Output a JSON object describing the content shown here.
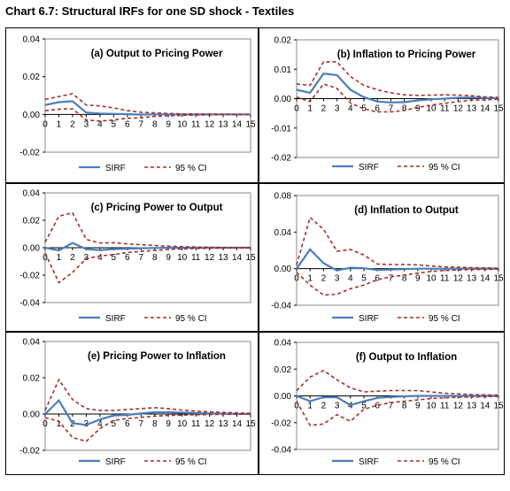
{
  "page_title": "Chart 6.7: Structural IRFs for one SD shock - Textiles",
  "colors": {
    "sirf": "#4a7ebb",
    "ci": "#a0302e"
  },
  "legend": {
    "sirf": "SIRF",
    "ci": "95 % CI"
  },
  "chart_data": [
    {
      "type": "line",
      "title": "(a) Output to Pricing Power",
      "x": [
        0,
        1,
        2,
        3,
        4,
        5,
        6,
        7,
        8,
        9,
        10,
        11,
        12,
        13,
        14,
        15
      ],
      "ylim": [
        -0.02,
        0.04
      ],
      "yticks": [
        "0.04",
        "0.02",
        "0.00",
        "-0.02"
      ],
      "ytick_values": [
        0.04,
        0.02,
        0.0,
        -0.02
      ],
      "series": [
        {
          "name": "SIRF",
          "values": [
            0.005,
            0.0065,
            0.007,
            0.001,
            0.0005,
            0.0003,
            0.0001,
            -0.0001,
            0.0,
            0.0,
            0.0,
            0.0,
            0.0,
            0.0,
            0.0,
            0.0
          ]
        },
        {
          "name": "95 % CI",
          "values": [
            0.008,
            0.0095,
            0.011,
            0.005,
            0.0045,
            0.0035,
            0.002,
            0.0012,
            0.0008,
            0.0005,
            0.0003,
            0.0002,
            0.0001,
            0.0001,
            0.0,
            0.0
          ]
        },
        {
          "name": "95 % CI",
          "values": [
            0.002,
            0.0028,
            0.003,
            -0.003,
            -0.0035,
            -0.003,
            -0.002,
            -0.0018,
            -0.001,
            -0.0008,
            -0.0005,
            -0.0003,
            -0.0002,
            -0.0001,
            -0.0001,
            -0.0001
          ]
        }
      ]
    },
    {
      "type": "line",
      "title": "(b) Inflation to Pricing Power",
      "x": [
        0,
        1,
        2,
        3,
        4,
        5,
        6,
        7,
        8,
        9,
        10,
        11,
        12,
        13,
        14,
        15
      ],
      "ylim": [
        -0.02,
        0.02
      ],
      "yticks": [
        "0.02",
        "0.01",
        "0.00",
        "-0.01",
        "-0.02"
      ],
      "ytick_values": [
        0.02,
        0.01,
        0.0,
        -0.01,
        -0.02
      ],
      "series": [
        {
          "name": "SIRF",
          "values": [
            0.003,
            0.002,
            0.0085,
            0.008,
            0.003,
            0.0005,
            -0.001,
            -0.0013,
            -0.0012,
            -0.0006,
            -0.0002,
            0.0,
            0.0003,
            0.0004,
            0.0002,
            0.0001
          ]
        },
        {
          "name": "95 % CI",
          "values": [
            0.005,
            0.0045,
            0.0125,
            0.0125,
            0.0075,
            0.0045,
            0.003,
            0.002,
            0.0013,
            0.0011,
            0.0012,
            0.0013,
            0.0012,
            0.001,
            0.0006,
            0.0004
          ]
        },
        {
          "name": "95 % CI",
          "values": [
            0.0005,
            -0.001,
            0.005,
            0.0035,
            -0.0015,
            -0.0035,
            -0.0045,
            -0.0045,
            -0.004,
            -0.003,
            -0.0022,
            -0.0016,
            -0.001,
            -0.0005,
            -0.0004,
            -0.0002
          ]
        }
      ]
    },
    {
      "type": "line",
      "title": "(c) Pricing Power to Output",
      "x": [
        0,
        1,
        2,
        3,
        4,
        5,
        6,
        7,
        8,
        9,
        10,
        11,
        12,
        13,
        14,
        15
      ],
      "ylim": [
        -0.04,
        0.04
      ],
      "yticks": [
        "0.04",
        "0.02",
        "0.00",
        "-0.02",
        "-0.04"
      ],
      "ytick_values": [
        0.04,
        0.02,
        0.0,
        -0.02,
        -0.04
      ],
      "series": [
        {
          "name": "SIRF",
          "values": [
            0.0,
            -0.002,
            0.0035,
            -0.001,
            -0.0018,
            -0.001,
            -0.0007,
            -0.0004,
            -0.0002,
            0.0,
            0.0,
            0.0,
            0.0,
            0.0,
            0.0,
            0.0
          ]
        },
        {
          "name": "95 % CI",
          "values": [
            0.004,
            0.023,
            0.0255,
            0.006,
            0.0035,
            0.0036,
            0.0028,
            0.0022,
            0.0016,
            0.0011,
            0.0008,
            0.0005,
            0.0003,
            0.0002,
            0.0001,
            0.0001
          ]
        },
        {
          "name": "95 % CI",
          "values": [
            -0.004,
            -0.0255,
            -0.018,
            -0.008,
            -0.006,
            -0.005,
            -0.0035,
            -0.0027,
            -0.002,
            -0.0013,
            -0.0009,
            -0.0006,
            -0.0004,
            -0.0002,
            -0.0001,
            -0.0001
          ]
        }
      ]
    },
    {
      "type": "line",
      "title": "(d) Inflation to Output",
      "x": [
        0,
        1,
        2,
        3,
        4,
        5,
        6,
        7,
        8,
        9,
        10,
        11,
        12,
        13,
        14,
        15
      ],
      "ylim": [
        -0.04,
        0.08
      ],
      "yticks": [
        "0.08",
        "0.04",
        "0.00",
        "-0.04"
      ],
      "ytick_values": [
        0.08,
        0.04,
        0.0,
        -0.04
      ],
      "series": [
        {
          "name": "SIRF",
          "values": [
            0.0,
            0.021,
            0.006,
            -0.002,
            0.001,
            0.0005,
            -0.0015,
            -0.001,
            -0.0005,
            0.0,
            0.0,
            0.0,
            0.0,
            0.0,
            0.0,
            0.0
          ]
        },
        {
          "name": "95 % CI",
          "values": [
            0.004,
            0.056,
            0.043,
            0.019,
            0.021,
            0.015,
            0.005,
            0.0045,
            0.0045,
            0.004,
            0.003,
            0.002,
            0.0015,
            0.001,
            0.0008,
            0.0005
          ]
        },
        {
          "name": "95 % CI",
          "values": [
            -0.004,
            -0.018,
            -0.029,
            -0.028,
            -0.022,
            -0.018,
            -0.012,
            -0.009,
            -0.007,
            -0.005,
            -0.003,
            -0.002,
            -0.0015,
            -0.001,
            -0.0008,
            -0.0005
          ]
        }
      ]
    },
    {
      "type": "line",
      "title": "(e) Pricing Power to Inflation",
      "x": [
        0,
        1,
        2,
        3,
        4,
        5,
        6,
        7,
        8,
        9,
        10,
        11,
        12,
        13,
        14,
        15
      ],
      "ylim": [
        -0.02,
        0.04
      ],
      "yticks": [
        "0.04",
        "0.02",
        "0.00",
        "-0.02"
      ],
      "ytick_values": [
        0.04,
        0.02,
        0.0,
        -0.02
      ],
      "series": [
        {
          "name": "SIRF",
          "values": [
            0.0,
            0.0075,
            -0.005,
            -0.006,
            -0.003,
            -0.0008,
            -0.0005,
            0.0003,
            0.001,
            0.001,
            0.0008,
            0.0006,
            0.0004,
            0.0002,
            0.0001,
            0.0
          ]
        },
        {
          "name": "95 % CI",
          "values": [
            0.002,
            0.019,
            0.008,
            0.003,
            0.002,
            0.002,
            0.0025,
            0.003,
            0.0035,
            0.003,
            0.0022,
            0.0016,
            0.0012,
            0.0009,
            0.0006,
            0.0004
          ]
        },
        {
          "name": "95 % CI",
          "values": [
            -0.002,
            -0.004,
            -0.013,
            -0.015,
            -0.008,
            -0.0035,
            -0.0025,
            -0.0018,
            -0.0012,
            -0.0008,
            -0.0006,
            -0.0004,
            -0.0003,
            -0.0002,
            -0.0001,
            -0.0001
          ]
        }
      ]
    },
    {
      "type": "line",
      "title": "(f) Output to Inflation",
      "x": [
        0,
        1,
        2,
        3,
        4,
        5,
        6,
        7,
        8,
        9,
        10,
        11,
        12,
        13,
        14,
        15
      ],
      "ylim": [
        -0.04,
        0.04
      ],
      "yticks": [
        "0.04",
        "0.02",
        "0.00",
        "-0.02",
        "-0.04"
      ],
      "ytick_values": [
        0.04,
        0.02,
        0.0,
        -0.02,
        -0.04
      ],
      "series": [
        {
          "name": "SIRF",
          "values": [
            0.0,
            -0.004,
            -0.001,
            -0.001,
            -0.007,
            -0.004,
            -0.0015,
            -0.0008,
            -0.0003,
            0.0,
            0.0,
            0.0,
            0.0,
            0.0,
            0.0,
            0.0
          ]
        },
        {
          "name": "95 % CI",
          "values": [
            0.004,
            0.014,
            0.019,
            0.012,
            0.006,
            0.003,
            0.0035,
            0.004,
            0.004,
            0.004,
            0.003,
            0.002,
            0.0015,
            0.001,
            0.0007,
            0.0005
          ]
        },
        {
          "name": "95 % CI",
          "values": [
            -0.004,
            -0.022,
            -0.021,
            -0.014,
            -0.019,
            -0.01,
            -0.007,
            -0.005,
            -0.004,
            -0.003,
            -0.002,
            -0.0015,
            -0.001,
            -0.0008,
            -0.0005,
            -0.0003
          ]
        }
      ]
    }
  ]
}
